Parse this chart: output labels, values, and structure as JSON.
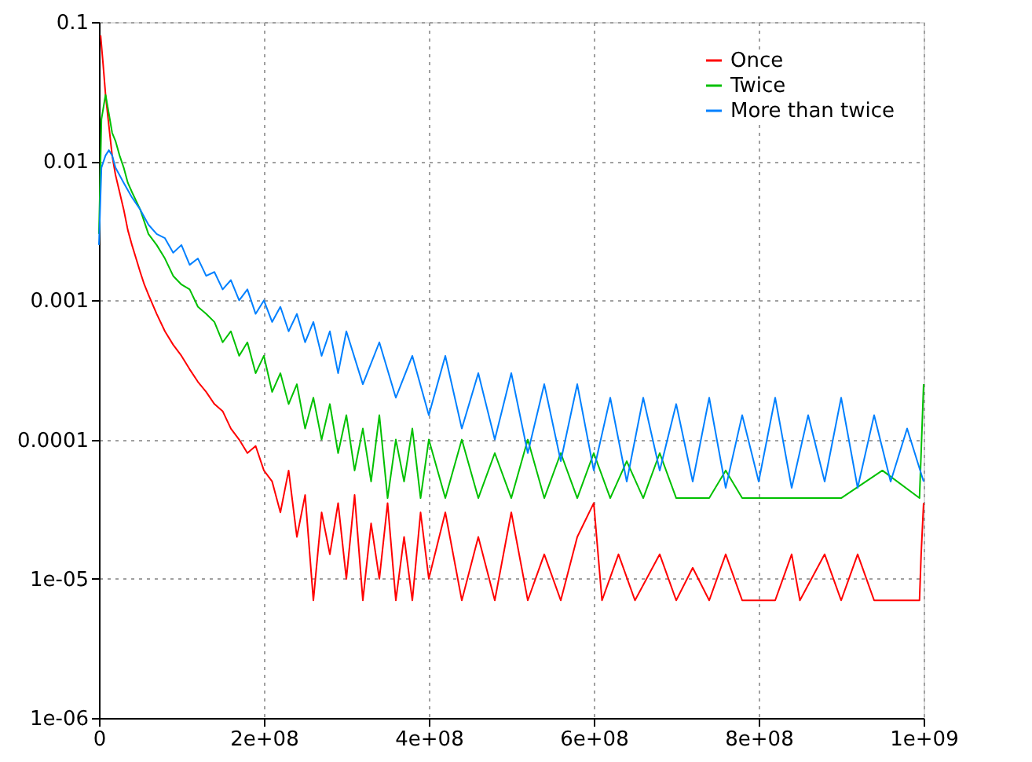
{
  "chart_data": {
    "type": "line",
    "log": "y",
    "grid": true,
    "legend": "top right",
    "marker": "none",
    "line_style": "solid",
    "xlim": [
      0,
      1000000000.0
    ],
    "xticks": [
      0,
      {
        "value": 200000000.0,
        "label": "2e+08"
      },
      {
        "value": 400000000.0,
        "label": "4e+08"
      },
      {
        "value": 600000000.0,
        "label": "6e+08"
      },
      {
        "value": 800000000.0,
        "label": "8e+08"
      },
      {
        "value": 1000000000.0,
        "label": "1e+09"
      }
    ],
    "ylim": [
      1e-06,
      0.1
    ],
    "yticks": [
      {
        "value": 1e-06,
        "label": "1e-06"
      },
      {
        "value": 1e-05,
        "label": "1e-05"
      },
      0.0001,
      0.001,
      0.01,
      0.1
    ],
    "series": [
      {
        "name": "Once",
        "color": "#ff0000",
        "x": [
          2000000.0,
          5000000.0,
          8000000.0,
          12000000.0,
          16000000.0,
          20000000.0,
          25000000.0,
          30000000.0,
          35000000.0,
          40000000.0,
          45000000.0,
          50000000.0,
          55000000.0,
          60000000.0,
          70000000.0,
          80000000.0,
          90000000.0,
          100000000.0,
          110000000.0,
          120000000.0,
          130000000.0,
          140000000.0,
          150000000.0,
          160000000.0,
          170000000.0,
          180000000.0,
          190000000.0,
          200000000.0,
          210000000.0,
          220000000.0,
          230000000.0,
          240000000.0,
          250000000.0,
          260000000.0,
          270000000.0,
          280000000.0,
          290000000.0,
          300000000.0,
          310000000.0,
          320000000.0,
          330000000.0,
          340000000.0,
          350000000.0,
          360000000.0,
          370000000.0,
          380000000.0,
          390000000.0,
          400000000.0,
          420000000.0,
          440000000.0,
          460000000.0,
          480000000.0,
          500000000.0,
          520000000.0,
          540000000.0,
          560000000.0,
          580000000.0,
          600000000.0,
          610000000.0,
          630000000.0,
          650000000.0,
          680000000.0,
          700000000.0,
          720000000.0,
          740000000.0,
          760000000.0,
          780000000.0,
          820000000.0,
          840000000.0,
          850000000.0,
          880000000.0,
          900000000.0,
          920000000.0,
          940000000.0,
          995000000.0,
          997000000.0,
          1000000000.0
        ],
        "values": [
          0.08,
          0.05,
          0.03,
          0.018,
          0.011,
          0.008,
          0.006,
          0.0045,
          0.0032,
          0.0025,
          0.002,
          0.0016,
          0.0013,
          0.0011,
          0.0008,
          0.0006,
          0.00048,
          0.0004,
          0.00032,
          0.00026,
          0.00022,
          0.00018,
          0.00016,
          0.00012,
          0.0001,
          8e-05,
          9e-05,
          6e-05,
          5e-05,
          3e-05,
          6e-05,
          2e-05,
          4e-05,
          7e-06,
          3e-05,
          1.5e-05,
          3.5e-05,
          1e-05,
          4e-05,
          7e-06,
          2.5e-05,
          1e-05,
          3.5e-05,
          7e-06,
          2e-05,
          7e-06,
          3e-05,
          1e-05,
          3e-05,
          7e-06,
          2e-05,
          7e-06,
          3e-05,
          7e-06,
          1.5e-05,
          7e-06,
          2e-05,
          3.5e-05,
          7e-06,
          1.5e-05,
          7e-06,
          1.5e-05,
          7e-06,
          1.2e-05,
          7e-06,
          1.5e-05,
          7e-06,
          7e-06,
          1.5e-05,
          7e-06,
          1.5e-05,
          7e-06,
          1.5e-05,
          7e-06,
          7e-06,
          1.5e-05,
          3.5e-05
        ]
      },
      {
        "name": "Twice",
        "color": "#00c000",
        "x": [
          0,
          3000000.0,
          8000000.0,
          12000000.0,
          16000000.0,
          20000000.0,
          25000000.0,
          30000000.0,
          35000000.0,
          40000000.0,
          50000000.0,
          60000000.0,
          70000000.0,
          80000000.0,
          90000000.0,
          100000000.0,
          110000000.0,
          120000000.0,
          130000000.0,
          140000000.0,
          150000000.0,
          160000000.0,
          170000000.0,
          180000000.0,
          190000000.0,
          200000000.0,
          210000000.0,
          220000000.0,
          230000000.0,
          240000000.0,
          250000000.0,
          260000000.0,
          270000000.0,
          280000000.0,
          290000000.0,
          300000000.0,
          310000000.0,
          320000000.0,
          330000000.0,
          340000000.0,
          350000000.0,
          360000000.0,
          370000000.0,
          380000000.0,
          390000000.0,
          400000000.0,
          420000000.0,
          440000000.0,
          460000000.0,
          480000000.0,
          500000000.0,
          520000000.0,
          540000000.0,
          560000000.0,
          580000000.0,
          600000000.0,
          620000000.0,
          640000000.0,
          660000000.0,
          680000000.0,
          700000000.0,
          740000000.0,
          760000000.0,
          780000000.0,
          900000000.0,
          950000000.0,
          995000000.0,
          1000000000.0
        ],
        "values": [
          0.003,
          0.02,
          0.03,
          0.022,
          0.016,
          0.014,
          0.011,
          0.009,
          0.007,
          0.006,
          0.0045,
          0.003,
          0.0025,
          0.002,
          0.0015,
          0.0013,
          0.0012,
          0.0009,
          0.0008,
          0.0007,
          0.0005,
          0.0006,
          0.0004,
          0.0005,
          0.0003,
          0.0004,
          0.00022,
          0.0003,
          0.00018,
          0.00025,
          0.00012,
          0.0002,
          0.0001,
          0.00018,
          8e-05,
          0.00015,
          6e-05,
          0.00012,
          5e-05,
          0.00015,
          3.8e-05,
          0.0001,
          5e-05,
          0.00012,
          3.8e-05,
          0.0001,
          3.8e-05,
          0.0001,
          3.8e-05,
          8e-05,
          3.8e-05,
          0.0001,
          3.8e-05,
          8e-05,
          3.8e-05,
          8e-05,
          3.8e-05,
          7e-05,
          3.8e-05,
          8e-05,
          3.8e-05,
          3.8e-05,
          6e-05,
          3.8e-05,
          3.8e-05,
          6e-05,
          3.8e-05,
          0.00025
        ]
      },
      {
        "name": "More than twice",
        "color": "#0080ff",
        "x": [
          0,
          3000000.0,
          8000000.0,
          12000000.0,
          16000000.0,
          20000000.0,
          30000000.0,
          40000000.0,
          50000000.0,
          60000000.0,
          70000000.0,
          80000000.0,
          90000000.0,
          100000000.0,
          110000000.0,
          120000000.0,
          130000000.0,
          140000000.0,
          150000000.0,
          160000000.0,
          170000000.0,
          180000000.0,
          190000000.0,
          200000000.0,
          210000000.0,
          220000000.0,
          230000000.0,
          240000000.0,
          250000000.0,
          260000000.0,
          270000000.0,
          280000000.0,
          290000000.0,
          300000000.0,
          320000000.0,
          340000000.0,
          360000000.0,
          380000000.0,
          400000000.0,
          420000000.0,
          440000000.0,
          460000000.0,
          480000000.0,
          500000000.0,
          520000000.0,
          540000000.0,
          560000000.0,
          580000000.0,
          600000000.0,
          620000000.0,
          640000000.0,
          660000000.0,
          680000000.0,
          700000000.0,
          720000000.0,
          740000000.0,
          760000000.0,
          780000000.0,
          800000000.0,
          820000000.0,
          840000000.0,
          860000000.0,
          880000000.0,
          900000000.0,
          920000000.0,
          940000000.0,
          960000000.0,
          980000000.0,
          1000000000.0
        ],
        "values": [
          0.0025,
          0.009,
          0.011,
          0.012,
          0.011,
          0.009,
          0.007,
          0.0055,
          0.0045,
          0.0035,
          0.003,
          0.0028,
          0.0022,
          0.0025,
          0.0018,
          0.002,
          0.0015,
          0.0016,
          0.0012,
          0.0014,
          0.001,
          0.0012,
          0.0008,
          0.001,
          0.0007,
          0.0009,
          0.0006,
          0.0008,
          0.0005,
          0.0007,
          0.0004,
          0.0006,
          0.0003,
          0.0006,
          0.00025,
          0.0005,
          0.0002,
          0.0004,
          0.00015,
          0.0004,
          0.00012,
          0.0003,
          0.0001,
          0.0003,
          8e-05,
          0.00025,
          7e-05,
          0.00025,
          6e-05,
          0.0002,
          5e-05,
          0.0002,
          6e-05,
          0.00018,
          5e-05,
          0.0002,
          4.5e-05,
          0.00015,
          5e-05,
          0.0002,
          4.5e-05,
          0.00015,
          5e-05,
          0.0002,
          4.5e-05,
          0.00015,
          5e-05,
          0.00012,
          5e-05
        ]
      }
    ]
  }
}
